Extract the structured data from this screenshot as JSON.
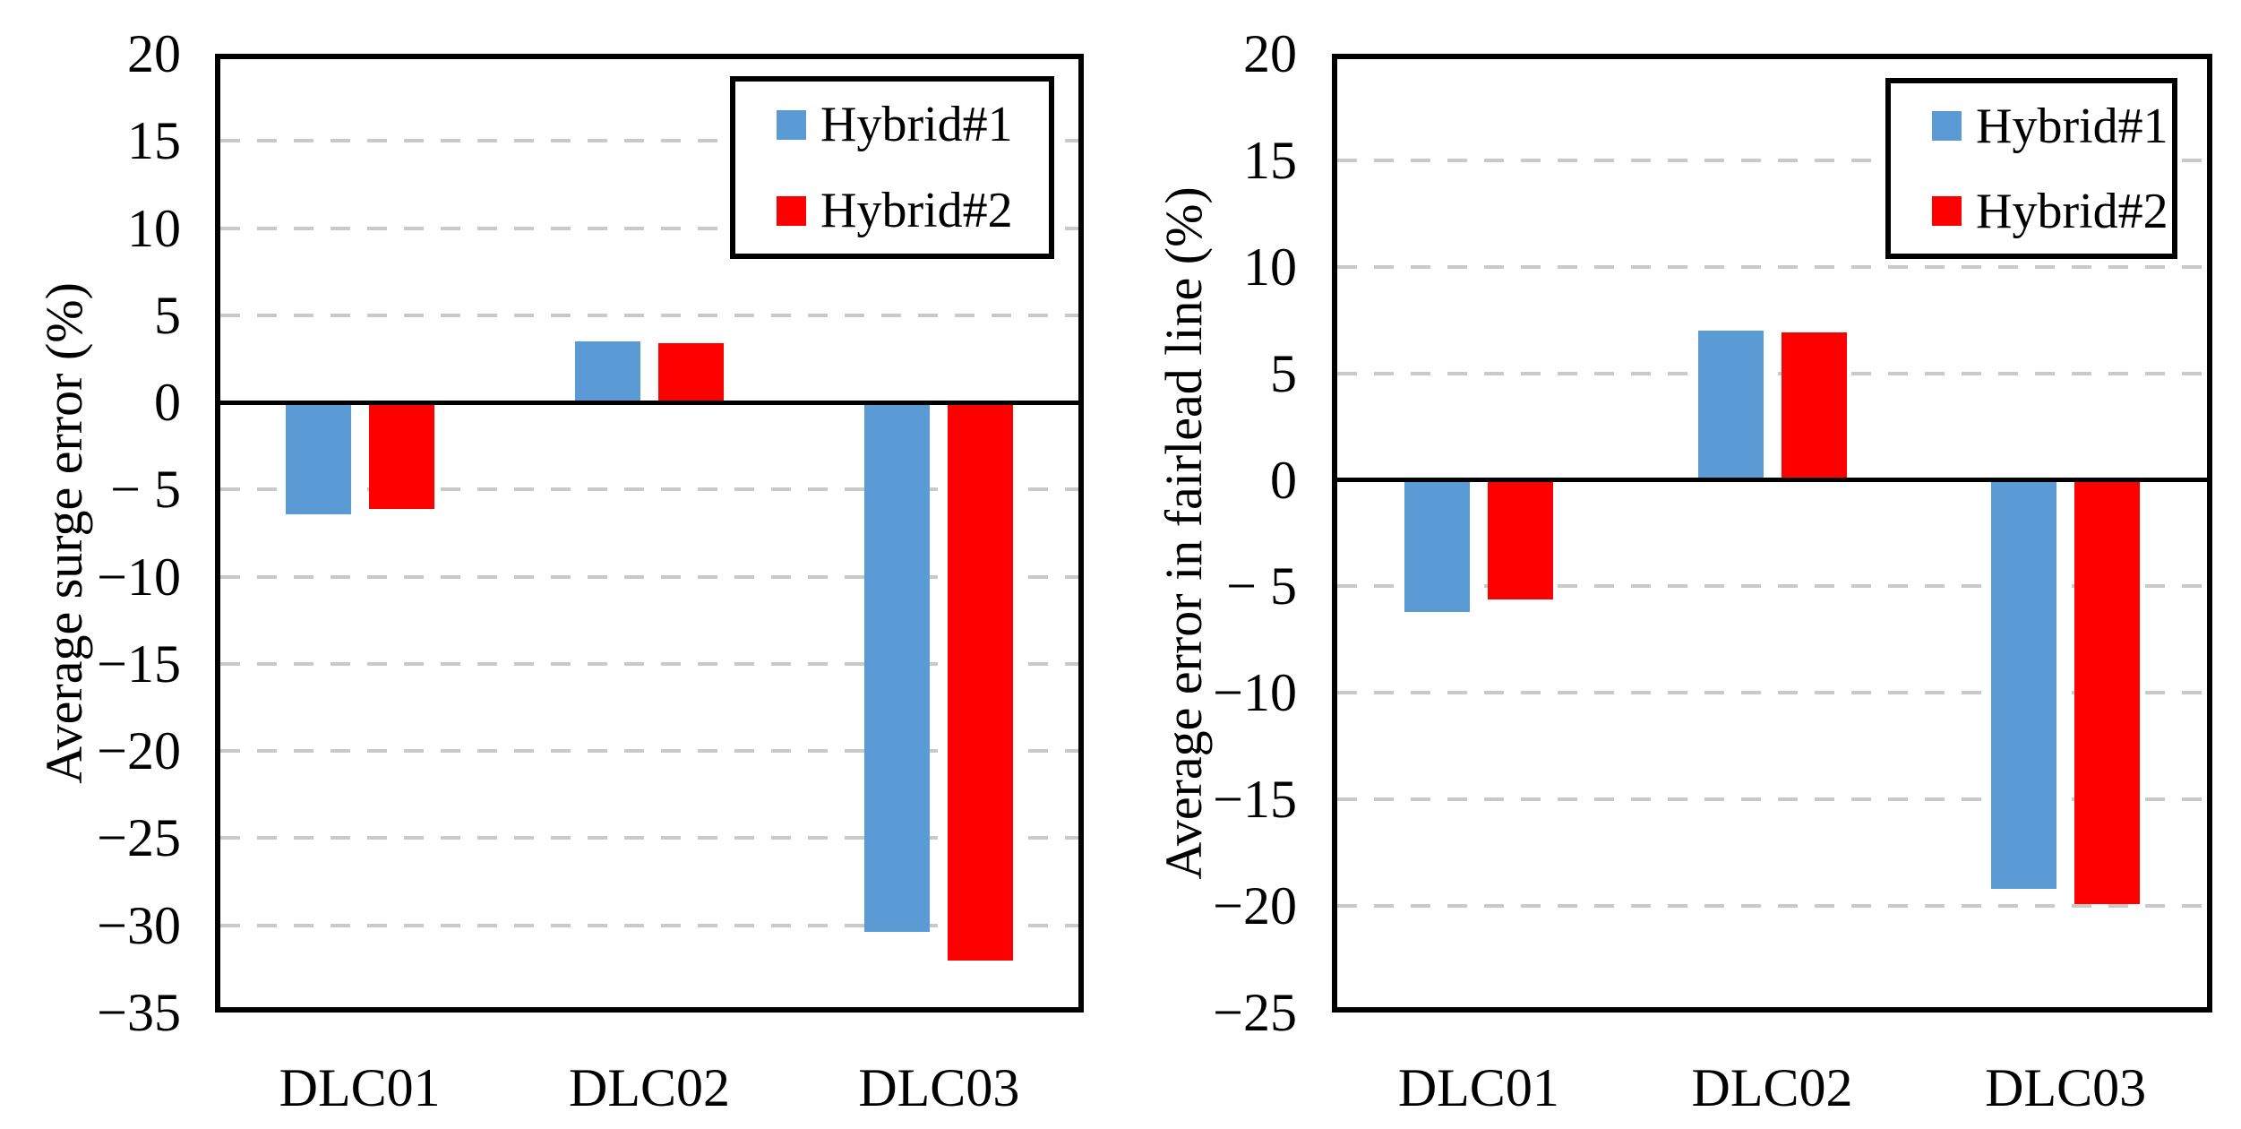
{
  "chart_data": {
    "type": "bar",
    "grid": "dashed-horizontal",
    "legend_position": "top-right-inside",
    "colors": {
      "hybrid1": "#5B9BD5",
      "hybrid2": "#FF0000",
      "gridline": "#C9C9C9",
      "axis": "#000000"
    },
    "charts": [
      {
        "ylabel": "Average surge error (%)",
        "ymax": 20,
        "ymin": -35,
        "ystep": 5,
        "yticks": [
          "20",
          "15",
          "10",
          "5",
          "0",
          "− 5",
          "−10",
          "−15",
          "−20",
          "−25",
          "−30",
          "−35"
        ],
        "categories": [
          "DLC01",
          "DLC02",
          "DLC03"
        ],
        "series": [
          {
            "name": "Hybrid#1",
            "color": "#5B9BD5",
            "values": [
              -6.4,
              3.5,
              -30.4
            ]
          },
          {
            "name": "Hybrid#2",
            "color": "#FF0000",
            "values": [
              -6.1,
              3.4,
              -32.0
            ]
          }
        ]
      },
      {
        "ylabel": "Average error in fairlead line (%)",
        "ymax": 20,
        "ymin": -25,
        "ystep": 5,
        "yticks": [
          "20",
          "15",
          "10",
          "5",
          "0",
          "− 5",
          "−10",
          "−15",
          "−20",
          "−25"
        ],
        "categories": [
          "DLC01",
          "DLC02",
          "DLC03"
        ],
        "series": [
          {
            "name": "Hybrid#1",
            "color": "#5B9BD5",
            "values": [
              -6.2,
              7.0,
              -19.2
            ]
          },
          {
            "name": "Hybrid#2",
            "color": "#FF0000",
            "values": [
              -5.6,
              6.9,
              -19.9
            ]
          }
        ]
      }
    ]
  }
}
